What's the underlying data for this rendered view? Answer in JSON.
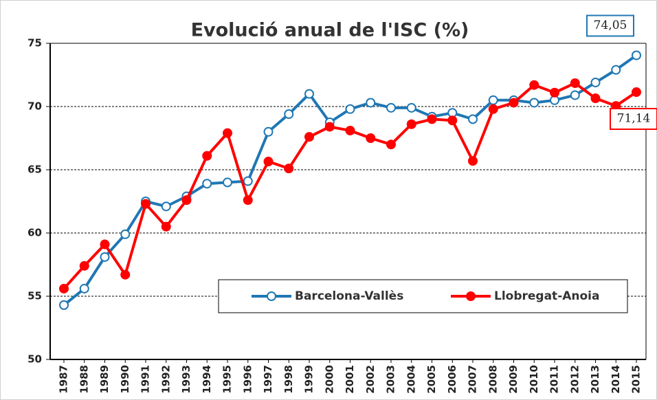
{
  "chart_data": {
    "type": "line",
    "title": "Evolució anual de l'ISC (%)",
    "categories": [
      "1987",
      "1988",
      "1989",
      "1990",
      "1991",
      "1992",
      "1993",
      "1994",
      "1995",
      "1996",
      "1997",
      "1998",
      "1999",
      "2000",
      "2001",
      "2002",
      "2003",
      "2004",
      "2005",
      "2006",
      "2007",
      "2008",
      "2009",
      "2010",
      "2011",
      "2012",
      "2013",
      "2014",
      "2015"
    ],
    "series": [
      {
        "name": "Barcelona-Vallès",
        "color": "#1f77b4",
        "marker": "open",
        "values": [
          54.3,
          55.6,
          58.1,
          59.9,
          62.5,
          62.1,
          62.9,
          63.9,
          64.0,
          64.1,
          68.0,
          69.4,
          71.0,
          68.75,
          69.8,
          70.3,
          69.9,
          69.9,
          69.2,
          69.5,
          69.0,
          70.5,
          70.5,
          70.3,
          70.5,
          70.9,
          71.9,
          72.9,
          74.05
        ],
        "value_labels": [
          null,
          null,
          null,
          null,
          null,
          null,
          null,
          null,
          null,
          null,
          null,
          null,
          null,
          null,
          null,
          null,
          null,
          null,
          null,
          null,
          null,
          null,
          null,
          null,
          null,
          null,
          null,
          null,
          "74,05"
        ]
      },
      {
        "name": "Llobregat-Anoia",
        "color": "#ff0000",
        "marker": "filled",
        "values": [
          55.6,
          57.4,
          59.1,
          56.7,
          62.3,
          60.5,
          62.6,
          66.1,
          67.9,
          62.6,
          65.65,
          65.1,
          67.6,
          68.4,
          68.1,
          67.5,
          67.0,
          68.6,
          69.0,
          68.9,
          65.7,
          69.8,
          70.3,
          71.7,
          71.1,
          71.85,
          70.65,
          70.05,
          71.14
        ],
        "value_labels": [
          null,
          null,
          null,
          null,
          null,
          null,
          null,
          null,
          null,
          null,
          null,
          null,
          null,
          null,
          null,
          null,
          null,
          null,
          null,
          null,
          null,
          null,
          null,
          null,
          null,
          null,
          null,
          null,
          "71,14"
        ]
      }
    ],
    "ylim": [
      50,
      75
    ],
    "yticks": [
      50,
      55,
      60,
      65,
      70,
      75
    ],
    "grid": true
  }
}
